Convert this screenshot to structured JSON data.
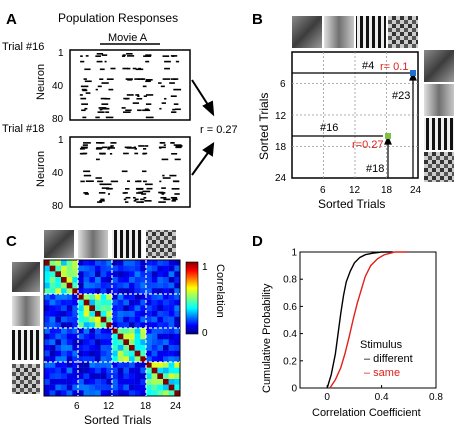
{
  "panels": {
    "A": {
      "letter": "A",
      "title": "Population Responses",
      "movie_label": "Movie A",
      "trial_top": "Trial #16",
      "trial_bottom": "Trial #18",
      "ylabel": "Neuron",
      "yticks": [
        "1",
        "40",
        "80"
      ],
      "r_label": "r = 0.27"
    },
    "B": {
      "letter": "B",
      "xlabel": "Sorted Trials",
      "ylabel": "Sorted Trials",
      "xticks": [
        "6",
        "12",
        "18",
        "24"
      ],
      "yticks": [
        "6",
        "12",
        "18",
        "24"
      ],
      "annotations": {
        "t4": "#4",
        "t23": "#23",
        "t16": "#16",
        "t18": "#18",
        "r01": "r= 0.1",
        "r027": "r=0.27"
      },
      "colors": {
        "red": "#e0201b",
        "blue": "#1f6fd1",
        "green": "#7dc242"
      }
    },
    "C": {
      "letter": "C",
      "xlabel": "Sorted Trials",
      "xticks": [
        "6",
        "12",
        "18",
        "24"
      ],
      "colorbar_label": "Correlation",
      "colorbar_ticks": [
        "1",
        "0"
      ]
    },
    "D": {
      "letter": "D",
      "xlabel": "Correlation Coefficient",
      "ylabel": "Cumulative Probability",
      "xticks": [
        "0",
        "0.4",
        "0.8"
      ],
      "yticks": [
        "0",
        "0.2",
        "0.4",
        "0.6",
        "0.8",
        "1"
      ],
      "legend_title": "Stimulus",
      "legend_different": "– different",
      "legend_same": "– same"
    }
  },
  "chart_data": [
    {
      "type": "line",
      "panel": "D",
      "xlabel": "Correlation Coefficient",
      "ylabel": "Cumulative Probability",
      "xlim": [
        -0.2,
        0.8
      ],
      "ylim": [
        0,
        1
      ],
      "series": [
        {
          "name": "different",
          "color": "#000000",
          "x": [
            0.0,
            0.03,
            0.06,
            0.08,
            0.1,
            0.12,
            0.14,
            0.17,
            0.2,
            0.24,
            0.28,
            0.33,
            0.4,
            0.48
          ],
          "y": [
            0.0,
            0.1,
            0.25,
            0.4,
            0.55,
            0.68,
            0.78,
            0.86,
            0.92,
            0.96,
            0.98,
            0.99,
            1.0,
            1.0
          ]
        },
        {
          "name": "same",
          "color": "#e0201b",
          "x": [
            0.02,
            0.06,
            0.1,
            0.13,
            0.16,
            0.19,
            0.22,
            0.25,
            0.28,
            0.32,
            0.37,
            0.42,
            0.5,
            0.58
          ],
          "y": [
            0.0,
            0.06,
            0.15,
            0.25,
            0.37,
            0.5,
            0.62,
            0.72,
            0.82,
            0.9,
            0.95,
            0.98,
            1.0,
            1.0
          ]
        }
      ]
    },
    {
      "type": "heatmap",
      "panel": "C",
      "size": 24,
      "range": [
        0,
        1
      ],
      "block_size": 6,
      "diagonal": 1,
      "within_block_mean": 0.45,
      "between_block_mean": 0.15
    }
  ]
}
